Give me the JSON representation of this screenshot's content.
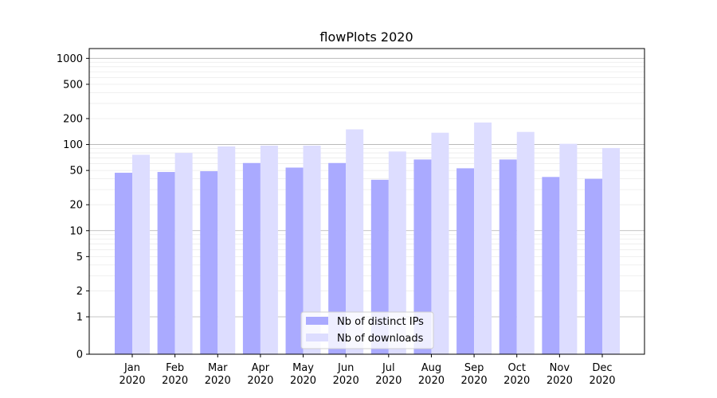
{
  "chart_data": {
    "type": "bar",
    "title": "flowPlots 2020",
    "xlabel": "",
    "ylabel": "",
    "yscale": "symlog",
    "ylim": [
      0,
      1300
    ],
    "y_ticks": [
      0,
      1,
      2,
      5,
      10,
      20,
      50,
      100,
      200,
      500,
      1000
    ],
    "grid": true,
    "legend_position": "bottom-center",
    "categories": [
      "Jan\n2020",
      "Feb\n2020",
      "Mar\n2020",
      "Apr\n2020",
      "May\n2020",
      "Jun\n2020",
      "Jul\n2020",
      "Aug\n2020",
      "Sep\n2020",
      "Oct\n2020",
      "Nov\n2020",
      "Dec\n2020"
    ],
    "series": [
      {
        "name": "Nb of distinct IPs",
        "color": "#aaaaff",
        "values": [
          47,
          48,
          49,
          61,
          54,
          61,
          39,
          67,
          53,
          67,
          42,
          40
        ]
      },
      {
        "name": "Nb of downloads",
        "color": "#ddddff",
        "values": [
          76,
          80,
          95,
          97,
          97,
          150,
          83,
          137,
          180,
          140,
          102,
          91
        ]
      }
    ]
  }
}
